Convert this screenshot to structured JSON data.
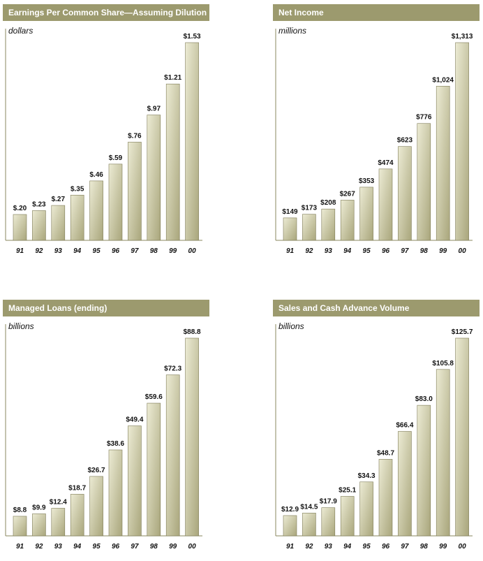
{
  "chart_data": [
    {
      "type": "bar",
      "title": "Earnings Per Common Share—Assuming Dilution",
      "unit": "dollars",
      "categories": [
        "91",
        "92",
        "93",
        "94",
        "95",
        "96",
        "97",
        "98",
        "99",
        "00"
      ],
      "values": [
        0.2,
        0.23,
        0.27,
        0.35,
        0.46,
        0.59,
        0.76,
        0.97,
        1.21,
        1.53
      ],
      "labels": [
        "$.20",
        "$.23",
        "$.27",
        "$.35",
        "$.46",
        "$.59",
        "$.76",
        "$.97",
        "$1.21",
        "$1.53"
      ],
      "ylim": [
        0,
        1.53
      ]
    },
    {
      "type": "bar",
      "title": "Net Income",
      "unit": "millions",
      "categories": [
        "91",
        "92",
        "93",
        "94",
        "95",
        "96",
        "97",
        "98",
        "99",
        "00"
      ],
      "values": [
        149,
        173,
        208,
        267,
        353,
        474,
        623,
        776,
        1024,
        1313
      ],
      "labels": [
        "$149",
        "$173",
        "$208",
        "$267",
        "$353",
        "$474",
        "$623",
        "$776",
        "$1,024",
        "$1,313"
      ],
      "ylim": [
        0,
        1313
      ]
    },
    {
      "type": "bar",
      "title": "Managed Loans (ending)",
      "unit": "billions",
      "categories": [
        "91",
        "92",
        "93",
        "94",
        "95",
        "96",
        "97",
        "98",
        "99",
        "00"
      ],
      "values": [
        8.8,
        9.9,
        12.4,
        18.7,
        26.7,
        38.6,
        49.4,
        59.6,
        72.3,
        88.8
      ],
      "labels": [
        "$8.8",
        "$9.9",
        "$12.4",
        "$18.7",
        "$26.7",
        "$38.6",
        "$49.4",
        "$59.6",
        "$72.3",
        "$88.8"
      ],
      "ylim": [
        0,
        88.8
      ]
    },
    {
      "type": "bar",
      "title": "Sales and Cash Advance Volume",
      "unit": "billions",
      "categories": [
        "91",
        "92",
        "93",
        "94",
        "95",
        "96",
        "97",
        "98",
        "99",
        "00"
      ],
      "values": [
        12.9,
        14.5,
        17.9,
        25.1,
        34.3,
        48.7,
        66.4,
        83.0,
        105.8,
        125.7
      ],
      "labels": [
        "$12.9",
        "$14.5",
        "$17.9",
        "$25.1",
        "$34.3",
        "$48.7",
        "$66.4",
        "$83.0",
        "$105.8",
        "$125.7"
      ],
      "ylim": [
        0,
        125.7
      ]
    }
  ],
  "colors": {
    "header_bg": "#9c9a6e",
    "bar_light": "#ecebd4",
    "bar_dark": "#a9a67c",
    "bar_stroke": "#7d7a55",
    "axis": "#8a875f"
  }
}
